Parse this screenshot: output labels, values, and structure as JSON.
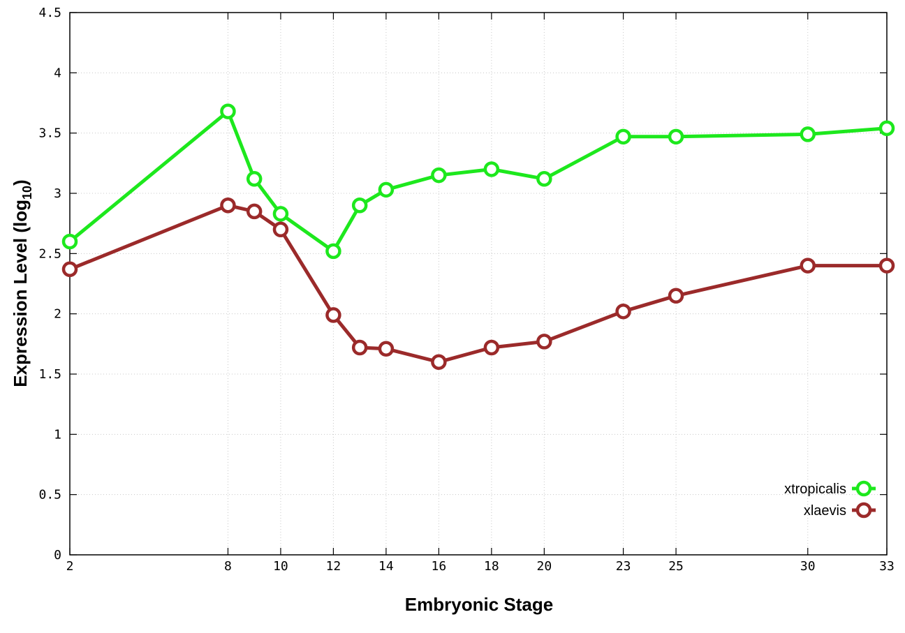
{
  "chart_data": {
    "type": "line",
    "title": "",
    "xlabel": "Embryonic Stage",
    "ylabel_main": "Expression Level (log",
    "ylabel_sub": "10",
    "ylabel_close": ")",
    "x_ticks": [
      2,
      8,
      10,
      12,
      14,
      16,
      18,
      20,
      23,
      25,
      30,
      33
    ],
    "y_ticks": [
      "0",
      "0.5",
      "1",
      "1.5",
      "2",
      "2.5",
      "3",
      "3.5",
      "4",
      "4.5"
    ],
    "xlim": [
      2,
      33
    ],
    "ylim": [
      0,
      4.5
    ],
    "grid": true,
    "legend_position": "bottom-right",
    "series": [
      {
        "name": "xtropicalis",
        "color": "#1de81d",
        "x": [
          2,
          8,
          9,
          10,
          12,
          13,
          14,
          16,
          18,
          20,
          23,
          25,
          30,
          33
        ],
        "y": [
          2.6,
          3.68,
          3.12,
          2.83,
          2.52,
          2.9,
          3.03,
          3.15,
          3.2,
          3.12,
          3.47,
          3.47,
          3.49,
          3.54
        ]
      },
      {
        "name": "xlaevis",
        "color": "#9b2a2a",
        "x": [
          2,
          8,
          9,
          10,
          12,
          13,
          14,
          16,
          18,
          20,
          23,
          25,
          30,
          33
        ],
        "y": [
          2.37,
          2.9,
          2.85,
          2.7,
          1.99,
          1.72,
          1.71,
          1.6,
          1.72,
          1.77,
          2.02,
          2.15,
          2.4,
          2.4
        ]
      }
    ]
  }
}
